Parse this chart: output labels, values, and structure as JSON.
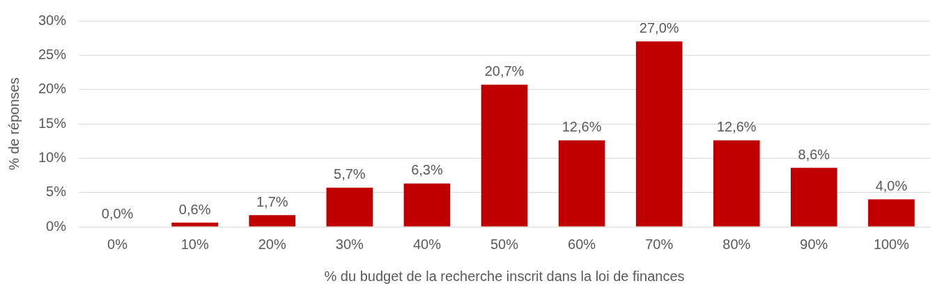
{
  "chart_data": {
    "type": "bar",
    "xlabel": "% du budget de la recherche inscrit dans la loi de finances",
    "ylabel": "% de réponses",
    "categories": [
      "0%",
      "10%",
      "20%",
      "30%",
      "40%",
      "50%",
      "60%",
      "70%",
      "80%",
      "90%",
      "100%"
    ],
    "values": [
      0.0,
      0.6,
      1.7,
      5.7,
      6.3,
      20.7,
      12.6,
      27.0,
      12.6,
      8.6,
      4.0
    ],
    "value_labels": [
      "0,0%",
      "0,6%",
      "1,7%",
      "5,7%",
      "6,3%",
      "20,7%",
      "12,6%",
      "27,0%",
      "12,6%",
      "8,6%",
      "4,0%"
    ],
    "color": "#c00000",
    "ylim": [
      0,
      30
    ],
    "yticks": [
      {
        "value": 0,
        "label": "0%"
      },
      {
        "value": 5,
        "label": "5%"
      },
      {
        "value": 10,
        "label": "10%"
      },
      {
        "value": 15,
        "label": "15%"
      },
      {
        "value": 20,
        "label": "20%"
      },
      {
        "value": 25,
        "label": "25%"
      },
      {
        "value": 30,
        "label": "30%"
      }
    ],
    "grid": "y",
    "legend": false
  }
}
